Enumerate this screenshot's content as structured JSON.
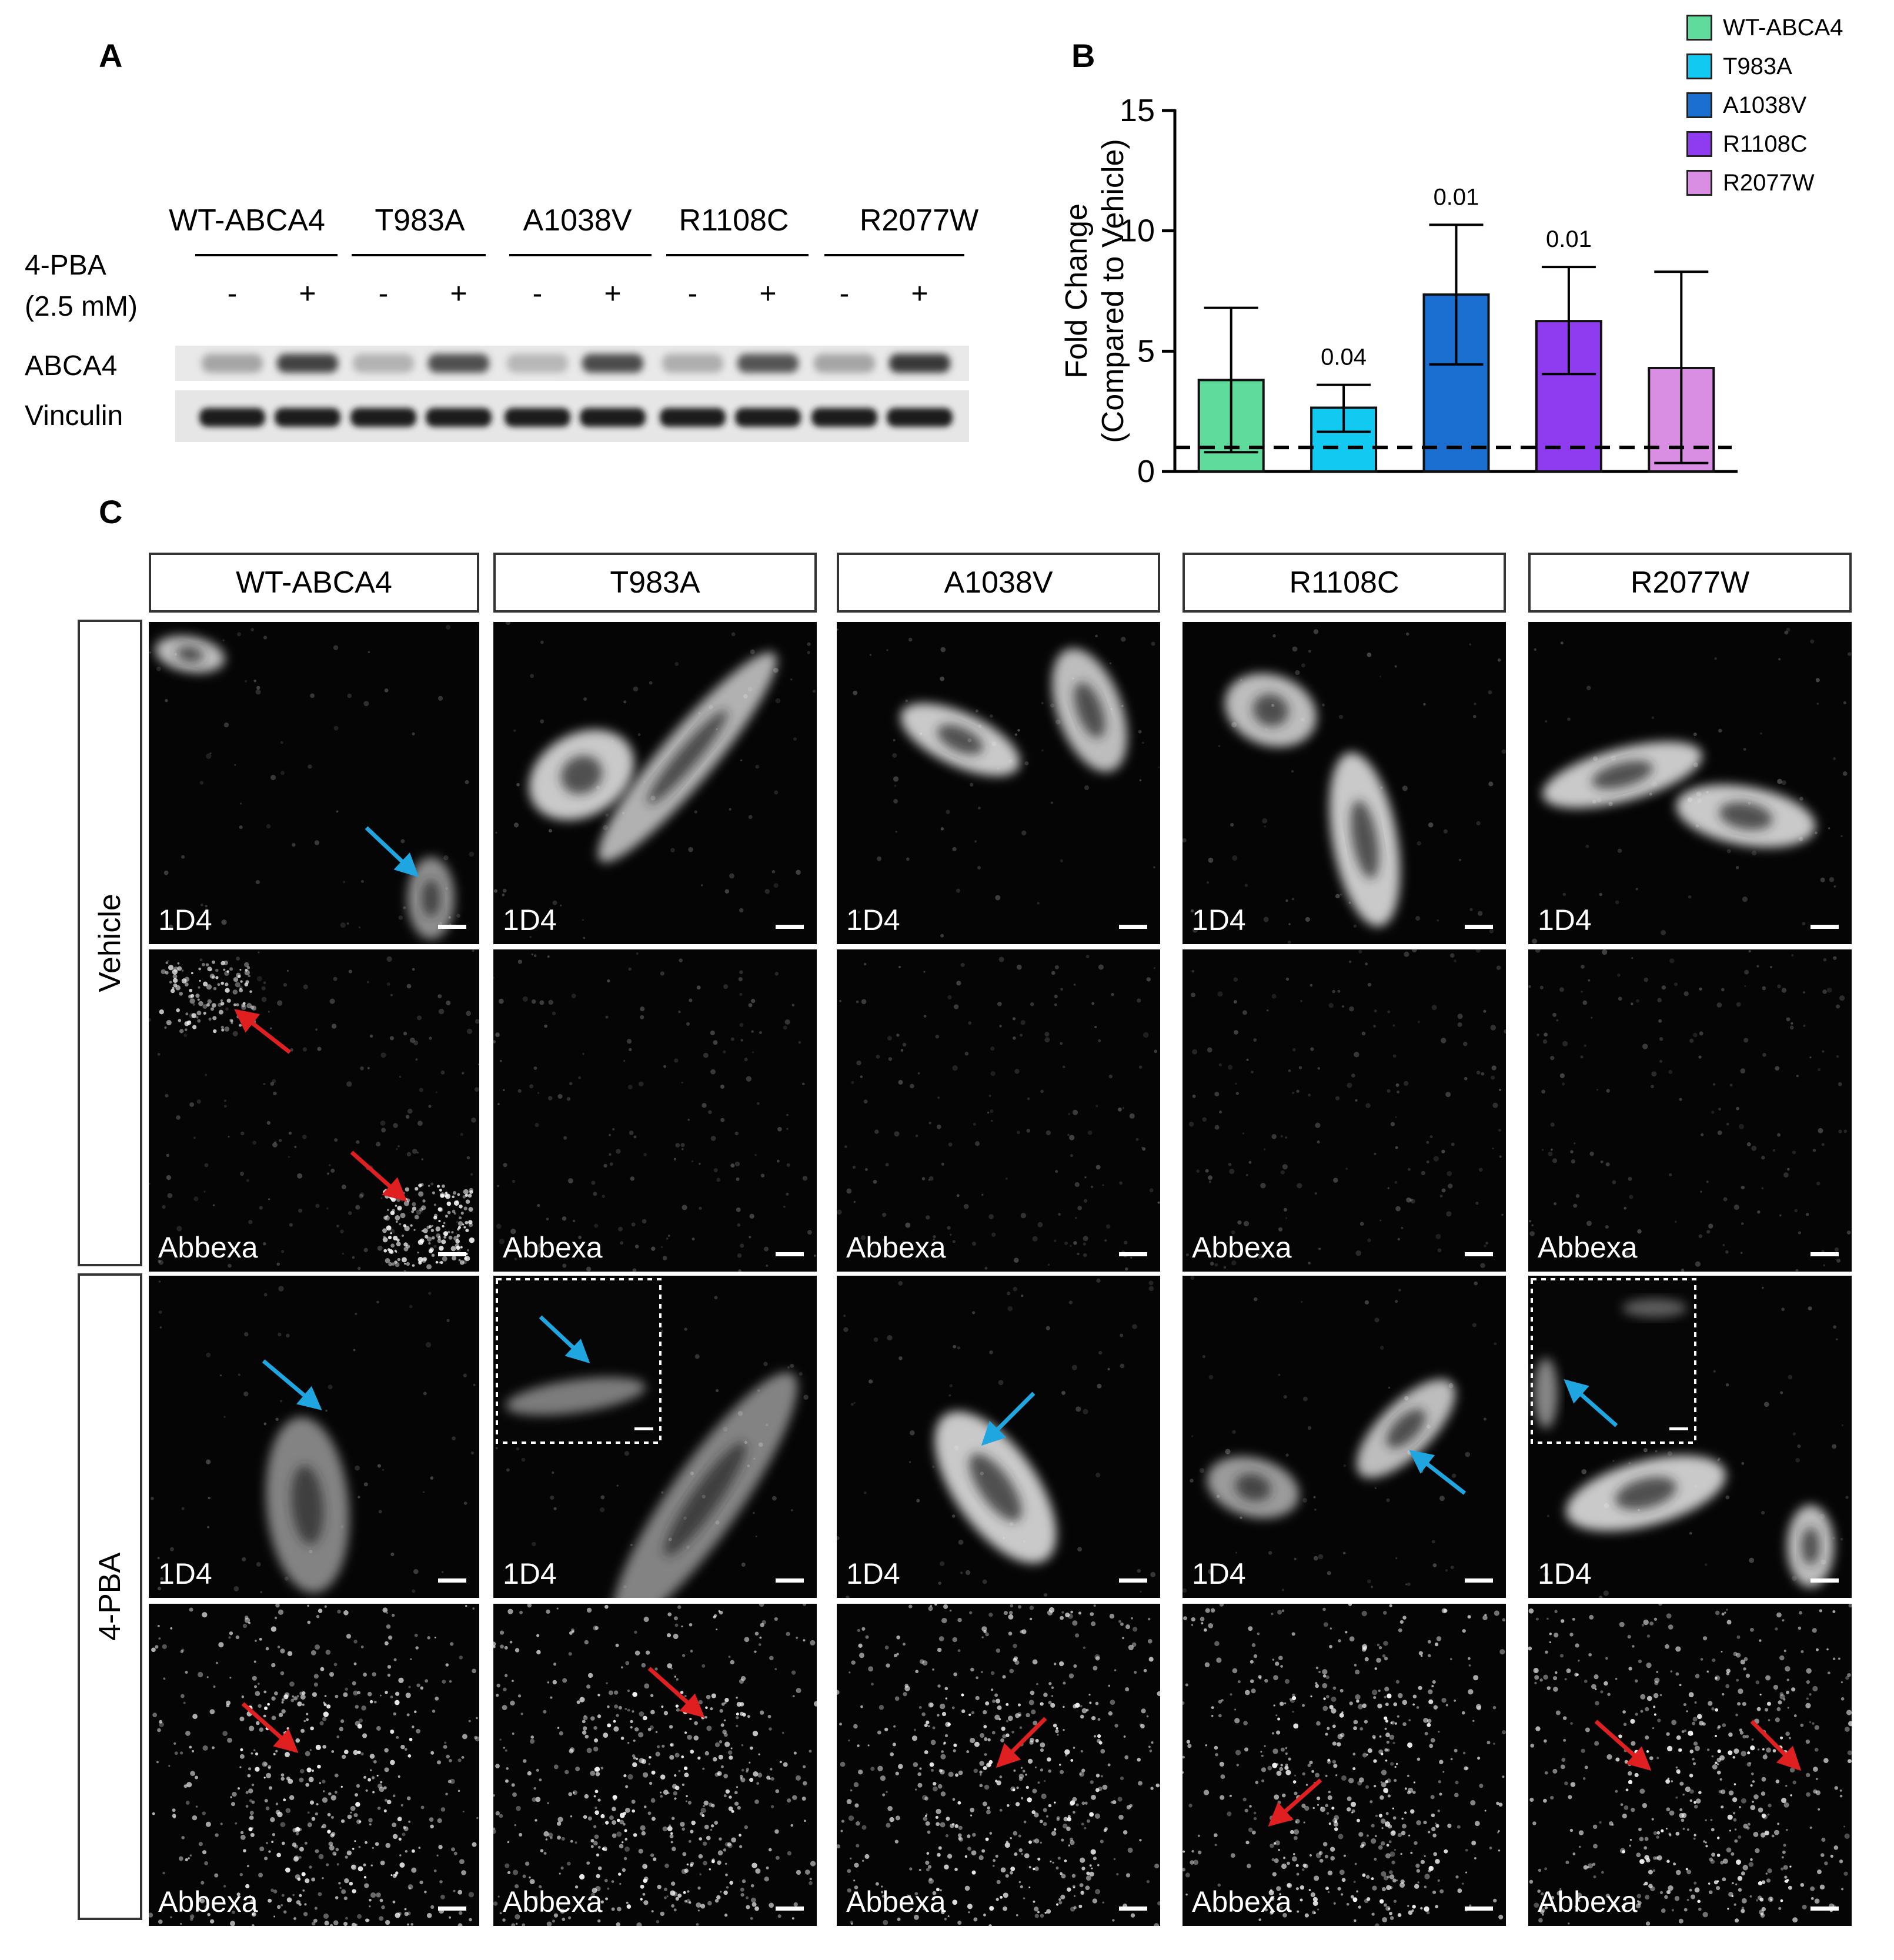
{
  "panel_a": {
    "letter": "A",
    "groups": [
      "WT-ABCA4",
      "T983A",
      "A1038V",
      "R1108C",
      "R2077W"
    ],
    "treatment_label_line1": "4-PBA",
    "treatment_label_line2": "(2.5 mM)",
    "lane_signs": [
      "-",
      "+",
      "-",
      "+",
      "-",
      "+",
      "-",
      "+",
      "-",
      "+"
    ],
    "band_labels": [
      "ABCA4",
      "Vinculin"
    ]
  },
  "panel_b": {
    "letter": "B",
    "chart_data": {
      "type": "bar",
      "categories": [
        "WT-ABCA4",
        "T983A",
        "A1038V",
        "R1108C",
        "R2077W"
      ],
      "values": [
        3.8,
        2.65,
        7.35,
        6.25,
        4.3
      ],
      "error_lower": [
        0.8,
        1.65,
        4.45,
        4.05,
        0.35
      ],
      "error_upper": [
        6.8,
        3.6,
        10.25,
        8.5,
        8.3
      ],
      "p_values": [
        "",
        "0.04",
        "0.01",
        "0.01",
        ""
      ],
      "colors": [
        "#5fdc9c",
        "#12c9f2",
        "#1a6fd1",
        "#8f3cf0",
        "#d98ee4"
      ],
      "ylabel_line1": "Fold Change",
      "ylabel_line2": "(Compared to Vehicle)",
      "ylim": [
        0,
        15
      ],
      "yticks": [
        "0",
        "5",
        "10",
        "15"
      ],
      "reference_line": 1,
      "legend": [
        "WT-ABCA4",
        "T983A",
        "A1038V",
        "R1108C",
        "R2077W"
      ],
      "legend_placement": "top-right"
    }
  },
  "panel_c": {
    "letter": "C",
    "columns": [
      "WT-ABCA4",
      "T983A",
      "A1038V",
      "R1108C",
      "R2077W"
    ],
    "rows": [
      "Vehicle",
      "4-PBA"
    ],
    "stain_top": "1D4",
    "stain_bottom": "Abbexa"
  }
}
